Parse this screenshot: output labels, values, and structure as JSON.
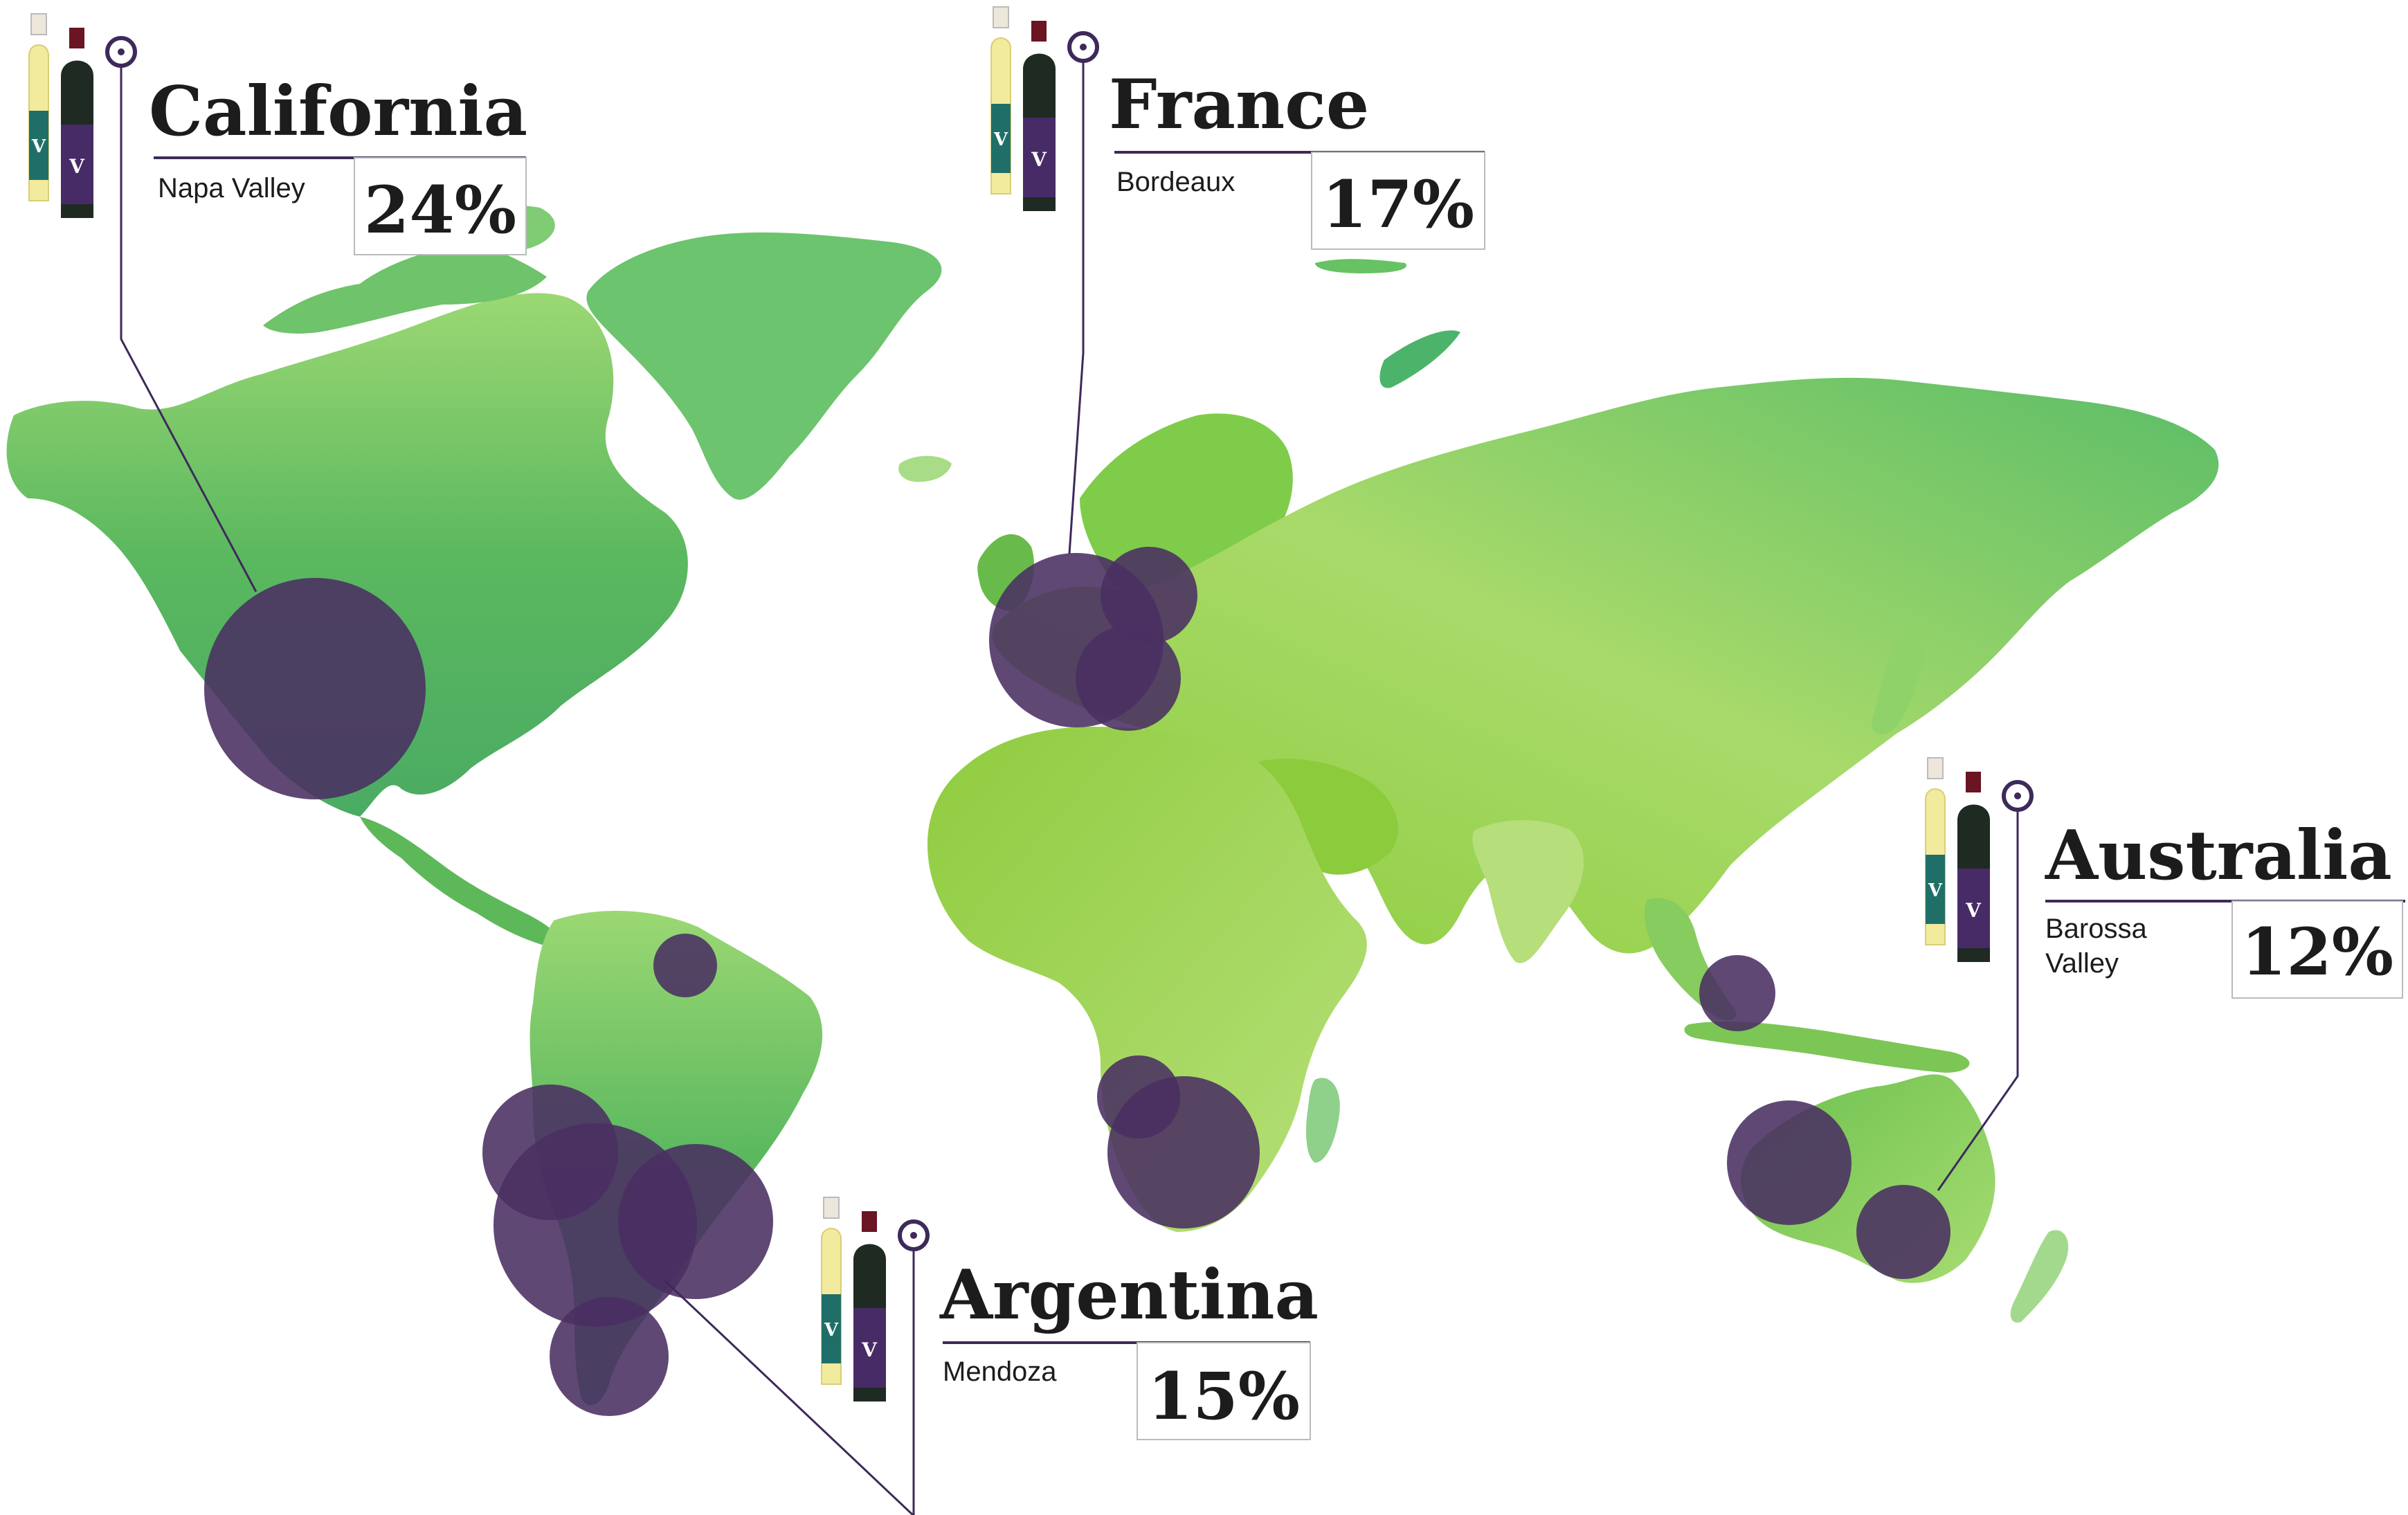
{
  "colors": {
    "land_light": "#a6dc6a",
    "land_mid": "#7cc653",
    "land_dark": "#4cad5e",
    "bubble": "#4a2f62",
    "line": "#3d2a5a",
    "wine_red": "#6b1424",
    "wine_white": "#f1e8a8",
    "label_teal": "#1f6f68",
    "label_purple": "#472b66"
  },
  "icons": [
    "wine-bottles-icon",
    "pin-marker-icon"
  ],
  "regions": [
    {
      "id": "california",
      "title": "California",
      "subtitle": [
        "Napa Valley"
      ],
      "percent": "24%",
      "share": 24
    },
    {
      "id": "france",
      "title": "France",
      "subtitle": [
        "Bordeaux"
      ],
      "percent": "17%",
      "share": 17
    },
    {
      "id": "argentina",
      "title": "Argentina",
      "subtitle": [
        "Mendoza"
      ],
      "percent": "15%",
      "share": 15
    },
    {
      "id": "australia",
      "title": "Australia",
      "subtitle": [
        "Barossa",
        "Valley"
      ],
      "percent": "12%",
      "share": 12
    }
  ]
}
